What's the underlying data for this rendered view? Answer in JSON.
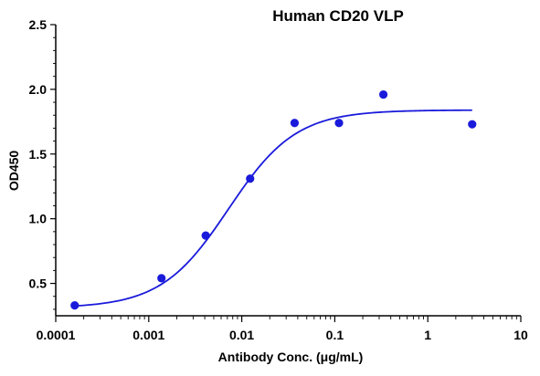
{
  "chart_data": {
    "type": "scatter",
    "title": "Human CD20 VLP",
    "xlabel": "Antibody Conc. (μg/mL)",
    "ylabel": "OD450",
    "x_scale": "log",
    "xlim": [
      0.0001,
      10
    ],
    "ylim": [
      0.25,
      2.5
    ],
    "x_ticks": [
      0.0001,
      0.001,
      0.01,
      0.1,
      1,
      10
    ],
    "x_tick_labels": [
      "0.0001",
      "0.001",
      "0.01",
      "0.1",
      "1",
      "10"
    ],
    "y_ticks": [
      0.5,
      1.0,
      1.5,
      2.0,
      2.5
    ],
    "y_tick_labels": [
      "0.5",
      "1.0",
      "1.5",
      "2.0",
      "2.5"
    ],
    "grid": false,
    "color": "#1a1adb",
    "series": [
      {
        "points": [
          {
            "x": 0.00016,
            "y": 0.33
          },
          {
            "x": 0.00137,
            "y": 0.54
          },
          {
            "x": 0.0041,
            "y": 0.87
          },
          {
            "x": 0.0123,
            "y": 1.31
          },
          {
            "x": 0.037,
            "y": 1.74
          },
          {
            "x": 0.111,
            "y": 1.74
          },
          {
            "x": 0.333,
            "y": 1.96
          },
          {
            "x": 3.0,
            "y": 1.73
          }
        ],
        "fit": {
          "model": "four-parameter logistic",
          "bottom": 0.31,
          "top": 1.84,
          "ec50": 0.0072,
          "hill": 1.2,
          "x_range": [
            0.00016,
            3.0
          ]
        }
      }
    ]
  }
}
